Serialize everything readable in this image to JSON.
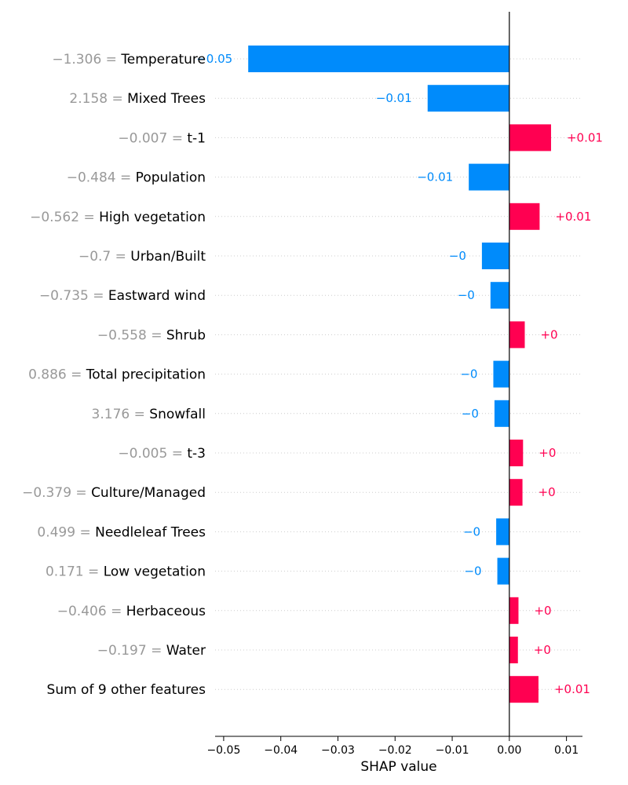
{
  "chart_data": {
    "type": "bar",
    "orientation": "horizontal",
    "xlabel": "SHAP value",
    "xlim": [
      -0.0515,
      0.0128
    ],
    "xticks": [
      -0.05,
      -0.04,
      -0.03,
      -0.02,
      -0.01,
      0.0,
      0.01
    ],
    "xtick_labels": [
      "−0.05",
      "−0.04",
      "−0.03",
      "−0.02",
      "−0.01",
      "0.00",
      "0.01"
    ],
    "grid": "horizontal dotted per row",
    "colors": {
      "positive": "#ff0051",
      "negative": "#008bfb"
    },
    "rows": [
      {
        "value_text": "−1.306 =",
        "name": "Temperature",
        "shap": -0.0457,
        "label": "−0.05"
      },
      {
        "value_text": "2.158 =",
        "name": "Mixed Trees",
        "shap": -0.0143,
        "label": "−0.01"
      },
      {
        "value_text": "−0.007 =",
        "name": "t-1",
        "shap": 0.0073,
        "label": "+0.01"
      },
      {
        "value_text": "−0.484 =",
        "name": "Population",
        "shap": -0.0071,
        "label": "−0.01"
      },
      {
        "value_text": "−0.562 =",
        "name": "High vegetation",
        "shap": 0.0053,
        "label": "+0.01"
      },
      {
        "value_text": "−0.7 =",
        "name": "Urban/Built",
        "shap": -0.0048,
        "label": "−0"
      },
      {
        "value_text": "−0.735 =",
        "name": "Eastward wind",
        "shap": -0.0033,
        "label": "−0"
      },
      {
        "value_text": "−0.558 =",
        "name": "Shrub",
        "shap": 0.0027,
        "label": "+0"
      },
      {
        "value_text": "0.886 =",
        "name": "Total precipitation",
        "shap": -0.0028,
        "label": "−0"
      },
      {
        "value_text": "3.176 =",
        "name": "Snowfall",
        "shap": -0.0026,
        "label": "−0"
      },
      {
        "value_text": "−0.005 =",
        "name": "t-3",
        "shap": 0.0024,
        "label": "+0"
      },
      {
        "value_text": "−0.379 =",
        "name": "Culture/Managed",
        "shap": 0.0023,
        "label": "+0"
      },
      {
        "value_text": "0.499 =",
        "name": "Needleleaf Trees",
        "shap": -0.0023,
        "label": "−0"
      },
      {
        "value_text": "0.171 =",
        "name": "Low vegetation",
        "shap": -0.0021,
        "label": "−0"
      },
      {
        "value_text": "−0.406 =",
        "name": "Herbaceous",
        "shap": 0.0016,
        "label": "+0"
      },
      {
        "value_text": "−0.197 =",
        "name": "Water",
        "shap": 0.0015,
        "label": "+0"
      },
      {
        "value_text": "",
        "name": "Sum of 9 other features",
        "shap": 0.0051,
        "label": "+0.01"
      }
    ]
  }
}
